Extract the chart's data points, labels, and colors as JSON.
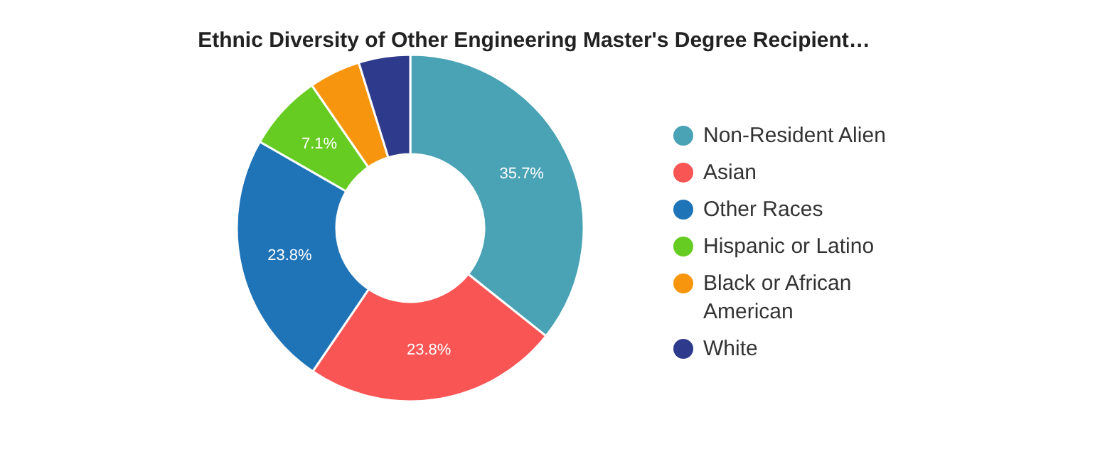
{
  "chart_data": {
    "type": "donut",
    "title": "Ethnic Diversity of Other Engineering Master's Degree Recipient…",
    "categories": [
      "Non-Resident Alien",
      "Asian",
      "Other Races",
      "Hispanic or Latino",
      "Black or African American",
      "White"
    ],
    "values": [
      35.7,
      23.8,
      23.8,
      7.1,
      4.8,
      4.8
    ],
    "colors": [
      "#4aa3b5",
      "#f95555",
      "#1f74b8",
      "#66cc22",
      "#f7960e",
      "#2e3a8c"
    ],
    "value_labels": [
      "35.7%",
      "23.8%",
      "23.8%",
      "7.1%",
      null,
      null
    ],
    "legend": "right"
  }
}
